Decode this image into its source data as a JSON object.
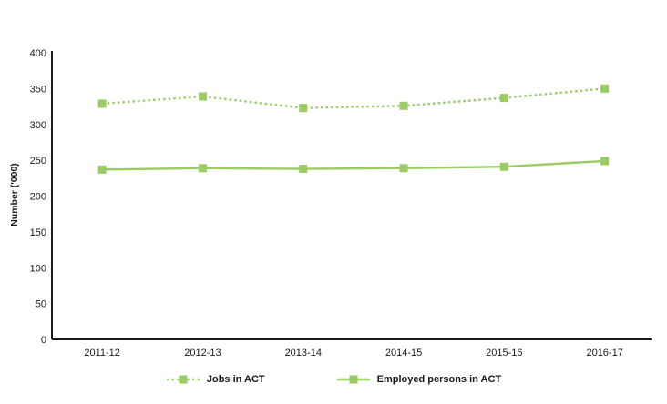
{
  "chart_data": {
    "type": "line",
    "title": "",
    "xlabel": "",
    "ylabel": "Number ('000)",
    "categories": [
      "2011-12",
      "2012-13",
      "2013-14",
      "2014-15",
      "2015-16",
      "2016-17"
    ],
    "series": [
      {
        "name": "Jobs in ACT",
        "style": "dotted",
        "color": "#9BCB63",
        "marker": "square",
        "values": [
          329,
          339,
          323,
          326,
          337,
          350
        ]
      },
      {
        "name": "Employed persons in ACT",
        "style": "solid",
        "color": "#9BCB63",
        "marker": "square",
        "values": [
          237,
          239,
          238,
          239,
          241,
          249
        ]
      }
    ],
    "ylim": [
      0,
      400
    ],
    "ytick_step": 50,
    "yticks": [
      0,
      50,
      100,
      150,
      200,
      250,
      300,
      350,
      400
    ],
    "grid": false,
    "legend_position": "bottom",
    "axis_color": "#1a1a1a",
    "text_color": "#1a1a1a",
    "background_color": "#ffffff"
  }
}
